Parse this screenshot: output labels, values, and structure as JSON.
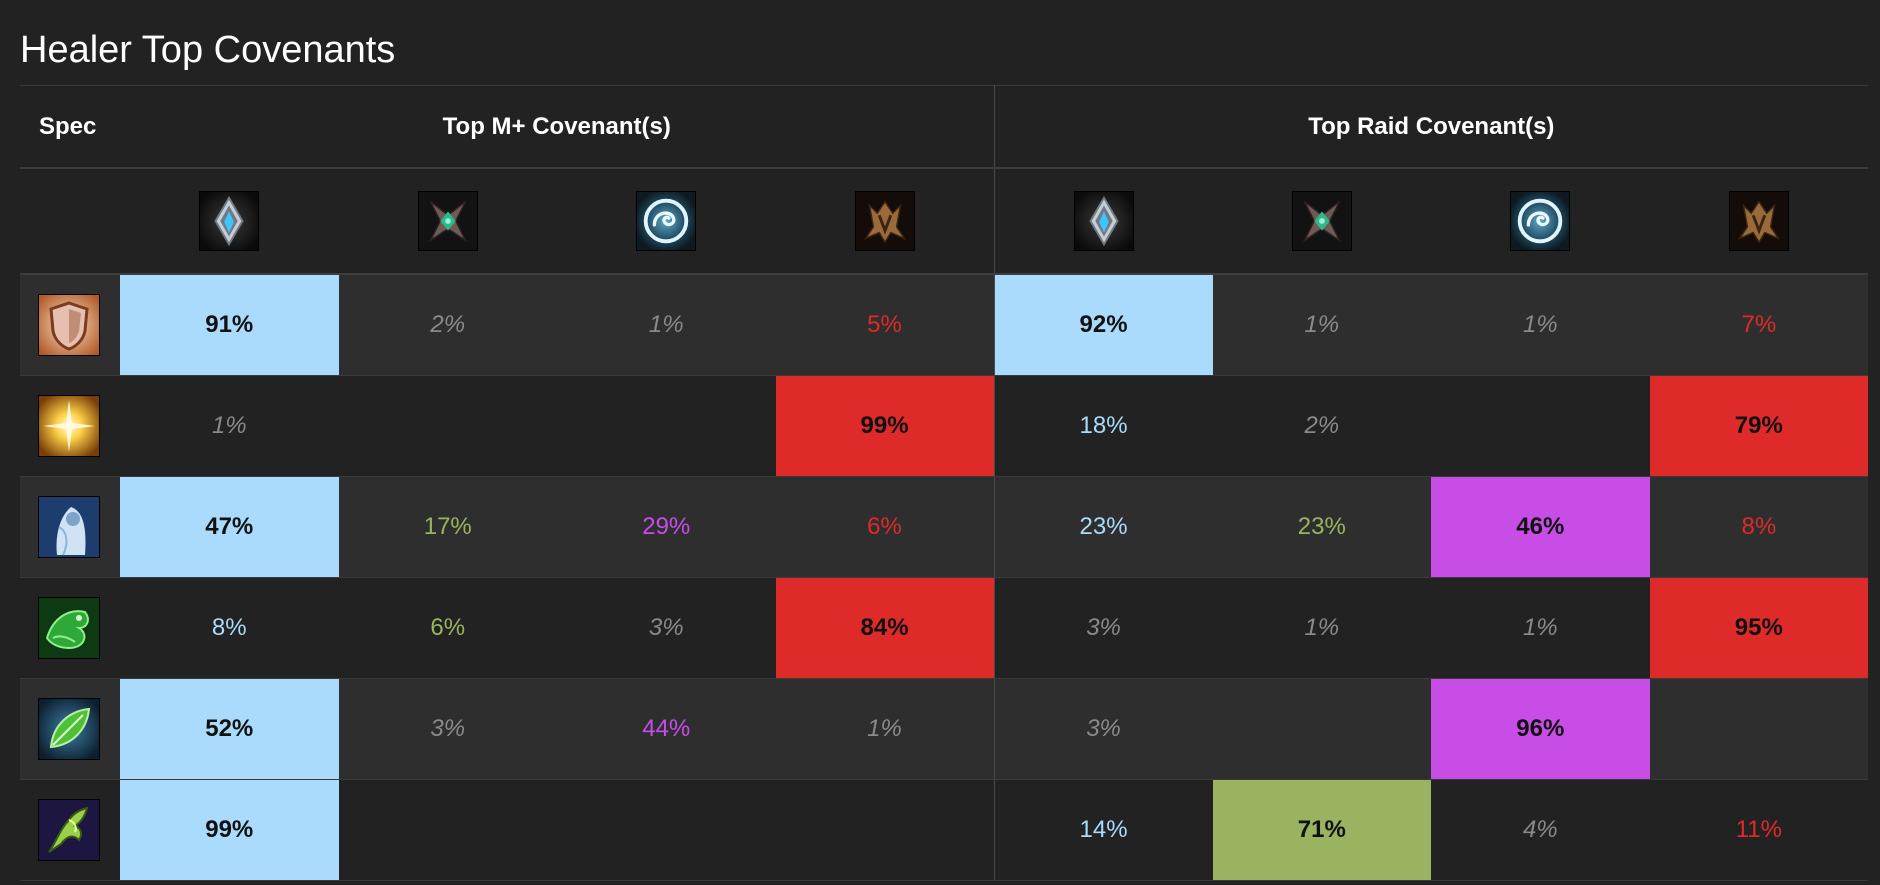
{
  "title": "Healer Top Covenants",
  "headers": {
    "spec": "Spec",
    "mplus": "Top M+ Covenant(s)",
    "raid": "Top Raid Covenant(s)"
  },
  "covenants": [
    {
      "key": "kyrian",
      "icon": "kyrian-covenant-icon",
      "color": "#aadbfc"
    },
    {
      "key": "necrolord",
      "icon": "necrolord-covenant-icon",
      "color": "#99b360"
    },
    {
      "key": "nightfae",
      "icon": "night-fae-covenant-icon",
      "color": "#c84de7"
    },
    {
      "key": "venthyr",
      "icon": "venthyr-covenant-icon",
      "color": "#df2a2a"
    }
  ],
  "rows": [
    {
      "spec_icon": "holy-paladin-spec-icon",
      "mplus": [
        "91%",
        "2%",
        "1%",
        "5%"
      ],
      "raid": [
        "92%",
        "1%",
        "1%",
        "7%"
      ]
    },
    {
      "spec_icon": "holy-priest-spec-icon",
      "mplus": [
        "1%",
        "",
        "",
        "99%"
      ],
      "raid": [
        "18%",
        "2%",
        "",
        "79%"
      ]
    },
    {
      "spec_icon": "discipline-priest-spec-icon",
      "mplus": [
        "47%",
        "17%",
        "29%",
        "6%"
      ],
      "raid": [
        "23%",
        "23%",
        "46%",
        "8%"
      ]
    },
    {
      "spec_icon": "mistweaver-monk-spec-icon",
      "mplus": [
        "8%",
        "6%",
        "3%",
        "84%"
      ],
      "raid": [
        "3%",
        "1%",
        "1%",
        "95%"
      ]
    },
    {
      "spec_icon": "restoration-druid-spec-icon",
      "mplus": [
        "52%",
        "3%",
        "44%",
        "1%"
      ],
      "raid": [
        "3%",
        "",
        "96%",
        ""
      ]
    },
    {
      "spec_icon": "restoration-shaman-spec-icon",
      "mplus": [
        "99%",
        "",
        "",
        ""
      ],
      "raid": [
        "14%",
        "71%",
        "4%",
        "11%"
      ]
    }
  ]
}
